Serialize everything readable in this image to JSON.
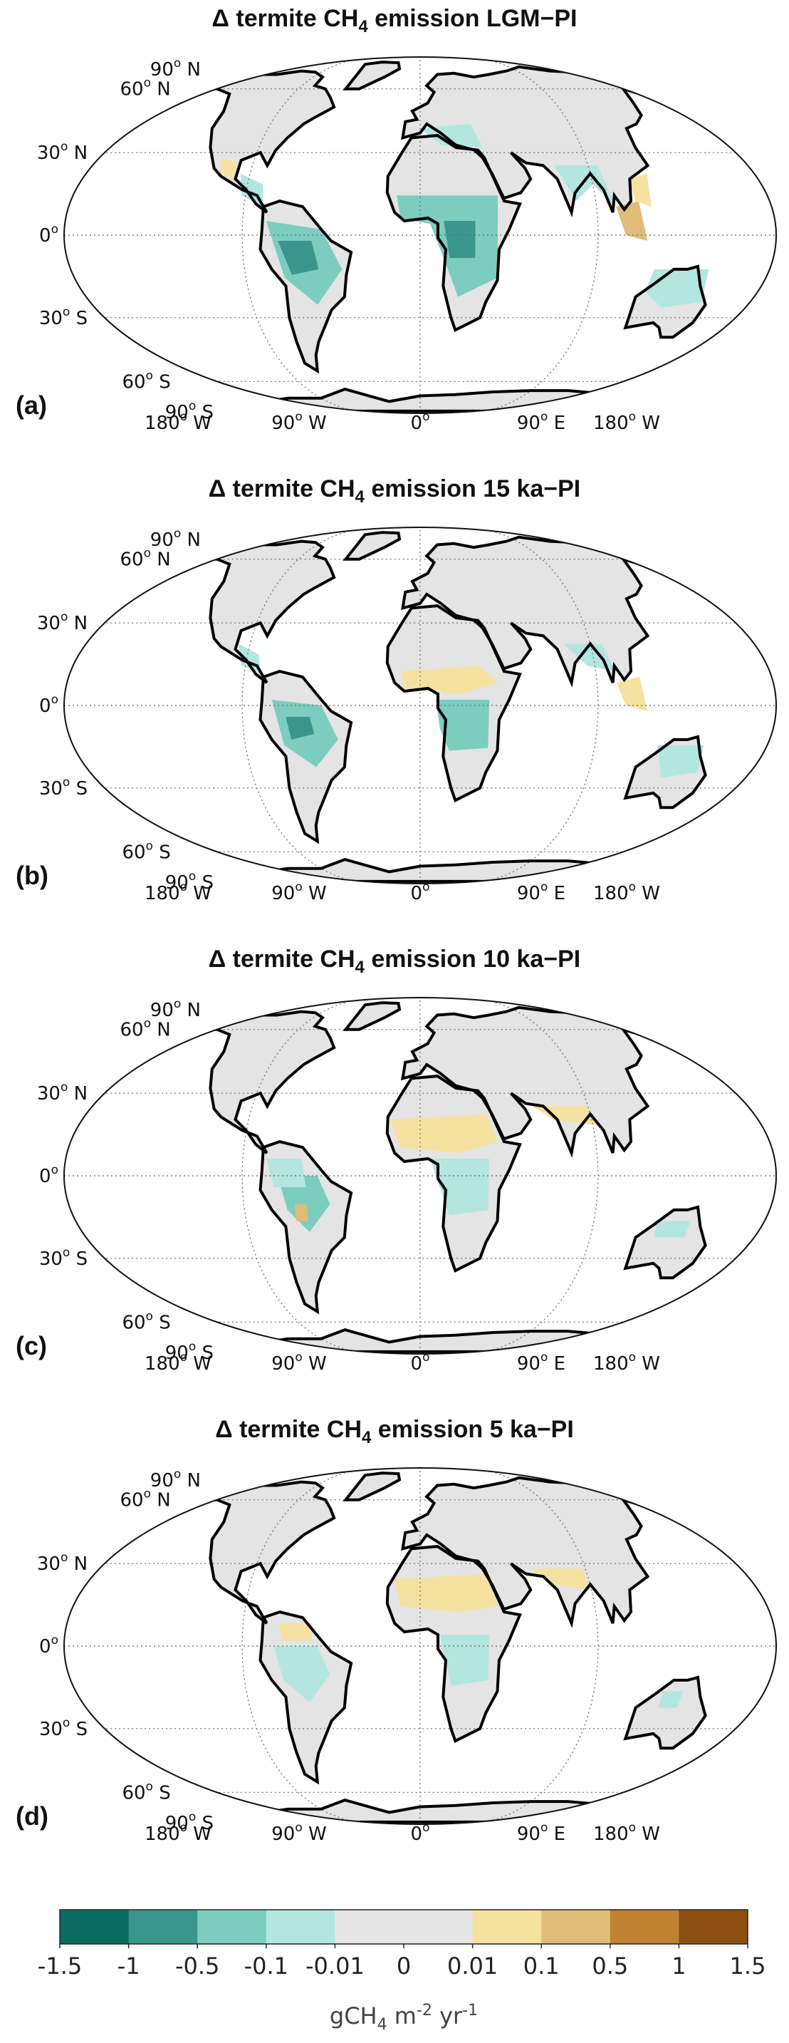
{
  "panels": [
    {
      "title_prefix": "Δ termite CH",
      "title_sub": "4",
      "title_suffix": " emission LGM−PI",
      "letter": "(a)",
      "scenario": "LGM"
    },
    {
      "title_prefix": "Δ termite CH",
      "title_sub": "4",
      "title_suffix": " emission 15 ka−PI",
      "letter": "(b)",
      "scenario": "15ka"
    },
    {
      "title_prefix": "Δ termite CH",
      "title_sub": "4",
      "title_suffix": " emission 10 ka−PI",
      "letter": "(c)",
      "scenario": "10ka"
    },
    {
      "title_prefix": "Δ termite CH",
      "title_sub": "4",
      "title_suffix": " emission 5 ka−PI",
      "letter": "(d)",
      "scenario": "5ka"
    }
  ],
  "lat_labels": [
    {
      "deg": "90",
      "hemi": " N"
    },
    {
      "deg": "60",
      "hemi": " N"
    },
    {
      "deg": "30",
      "hemi": " N"
    },
    {
      "deg": "0",
      "hemi": ""
    },
    {
      "deg": "30",
      "hemi": " S"
    },
    {
      "deg": "60",
      "hemi": " S"
    },
    {
      "deg": "90",
      "hemi": " S"
    }
  ],
  "lon_labels": [
    {
      "deg": "180",
      "hemi": " W"
    },
    {
      "deg": "90",
      "hemi": " W"
    },
    {
      "deg": "0",
      "hemi": ""
    },
    {
      "deg": "90",
      "hemi": " E"
    },
    {
      "deg": "180",
      "hemi": " W"
    }
  ],
  "colorbar": {
    "colors": [
      "#0b6b60",
      "#3a968c",
      "#7ccdbe",
      "#b3e6df",
      "#e6e6e6",
      "#e6e6e6",
      "#f5e2a1",
      "#dfbd78",
      "#c08231",
      "#8c4f12"
    ],
    "tick_labels": [
      "-1.5",
      "-1",
      "-0.5",
      "-0.1",
      "-0.01",
      "0",
      "0.01",
      "0.1",
      "0.5",
      "1",
      "1.5"
    ],
    "unit_prefix": "gCH",
    "unit_sub": "4",
    "unit_mid": " m",
    "unit_sup1": "-2",
    "unit_mid2": " yr",
    "unit_sup2": "-1"
  }
}
